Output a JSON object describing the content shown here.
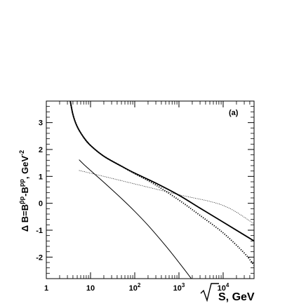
{
  "chart_data": {
    "type": "line",
    "panel_label": "(a)",
    "xlabel": "√S, GeV",
    "ylabel": "Δ B=B^{p̄p}-B^{pp}, GeV^{-2}",
    "xscale": "log",
    "xlim": [
      1,
      50000
    ],
    "ylim": [
      -2.8,
      3.8
    ],
    "x_ticks": [
      {
        "value": 1,
        "label": "1"
      },
      {
        "value": 10,
        "label": "10"
      },
      {
        "value": 100,
        "label": "10",
        "exp": "2"
      },
      {
        "value": 1000,
        "label": "10",
        "exp": "3"
      },
      {
        "value": 10000,
        "label": "10",
        "exp": "4"
      }
    ],
    "y_ticks": [
      -2,
      -1,
      0,
      1,
      2,
      3
    ],
    "grid": false,
    "series": [
      {
        "style": "thick-solid",
        "x": [
          3.4,
          4,
          5,
          7,
          10,
          20,
          50,
          100,
          300,
          1000,
          3000,
          10000,
          50000
        ],
        "y": [
          3.9,
          3.3,
          2.85,
          2.45,
          2.15,
          1.75,
          1.38,
          1.12,
          0.75,
          0.3,
          -0.18,
          -0.7,
          -1.4
        ]
      },
      {
        "style": "dotted",
        "x": [
          3.4,
          4,
          5,
          7,
          10,
          20,
          50,
          100,
          300,
          1000,
          3000,
          10000,
          30000,
          50000
        ],
        "y": [
          3.9,
          3.3,
          2.85,
          2.45,
          2.15,
          1.75,
          1.38,
          1.1,
          0.68,
          0.12,
          -0.45,
          -1.1,
          -1.85,
          -2.3
        ]
      },
      {
        "style": "thin-solid",
        "x": [
          5.5,
          7,
          10,
          20,
          50,
          100,
          200,
          500,
          1000,
          2000,
          3000
        ],
        "y": [
          1.62,
          1.45,
          1.22,
          0.78,
          0.18,
          -0.3,
          -0.82,
          -1.58,
          -2.2,
          -2.85,
          -3.3
        ]
      },
      {
        "style": "fine-dotted",
        "x": [
          5.5,
          10,
          100,
          1000,
          10000,
          50000
        ],
        "y": [
          1.22,
          1.12,
          0.72,
          0.32,
          -0.08,
          -0.76
        ]
      }
    ]
  }
}
